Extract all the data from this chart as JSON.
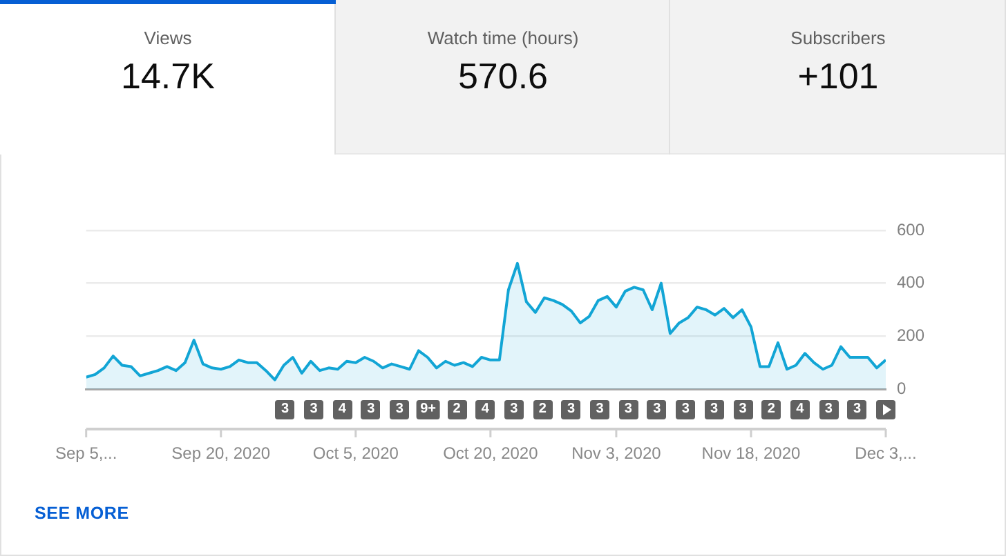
{
  "chart_data": [
    {
      "type": "other",
      "title": "Views",
      "annotations": [
        "14.7K"
      ]
    },
    {
      "type": "other",
      "title": "Watch time (hours)",
      "annotations": [
        "570.6"
      ]
    },
    {
      "type": "other",
      "title": "Subscribers",
      "annotations": [
        "+101"
      ]
    },
    {
      "type": "area",
      "x": [
        "2020-09-05",
        "2020-09-06",
        "2020-09-07",
        "2020-09-08",
        "2020-09-09",
        "2020-09-10",
        "2020-09-11",
        "2020-09-12",
        "2020-09-13",
        "2020-09-14",
        "2020-09-15",
        "2020-09-16",
        "2020-09-17",
        "2020-09-18",
        "2020-09-19",
        "2020-09-20",
        "2020-09-21",
        "2020-09-22",
        "2020-09-23",
        "2020-09-24",
        "2020-09-25",
        "2020-09-26",
        "2020-09-27",
        "2020-09-28",
        "2020-09-29",
        "2020-09-30",
        "2020-10-01",
        "2020-10-02",
        "2020-10-03",
        "2020-10-04",
        "2020-10-05",
        "2020-10-06",
        "2020-10-07",
        "2020-10-08",
        "2020-10-09",
        "2020-10-10",
        "2020-10-11",
        "2020-10-12",
        "2020-10-13",
        "2020-10-14",
        "2020-10-15",
        "2020-10-16",
        "2020-10-17",
        "2020-10-18",
        "2020-10-19",
        "2020-10-20",
        "2020-10-21",
        "2020-10-22",
        "2020-10-23",
        "2020-10-24",
        "2020-10-25",
        "2020-10-26",
        "2020-10-27",
        "2020-10-28",
        "2020-10-29",
        "2020-10-30",
        "2020-10-31",
        "2020-11-01",
        "2020-11-02",
        "2020-11-03",
        "2020-11-04",
        "2020-11-05",
        "2020-11-06",
        "2020-11-07",
        "2020-11-08",
        "2020-11-09",
        "2020-11-10",
        "2020-11-11",
        "2020-11-12",
        "2020-11-13",
        "2020-11-14",
        "2020-11-15",
        "2020-11-16",
        "2020-11-17",
        "2020-11-18",
        "2020-11-19",
        "2020-11-20",
        "2020-11-21",
        "2020-11-22",
        "2020-11-23",
        "2020-11-24",
        "2020-11-25",
        "2020-11-26",
        "2020-11-27",
        "2020-11-28",
        "2020-11-29",
        "2020-11-30",
        "2020-12-01",
        "2020-12-02",
        "2020-12-03"
      ],
      "series": [
        {
          "color": "#12a5d5",
          "values": [
            45,
            55,
            80,
            125,
            90,
            85,
            50,
            60,
            70,
            85,
            70,
            100,
            185,
            95,
            80,
            75,
            85,
            110,
            100,
            100,
            70,
            35,
            90,
            120,
            60,
            105,
            70,
            80,
            75,
            105,
            100,
            120,
            105,
            80,
            95,
            85,
            75,
            145,
            120,
            80,
            105,
            90,
            100,
            85,
            120,
            110,
            110,
            375,
            475,
            330,
            290,
            345,
            335,
            320,
            295,
            250,
            275,
            335,
            350,
            310,
            370,
            385,
            375,
            300,
            400,
            210,
            250,
            270,
            310,
            300,
            280,
            305,
            270,
            300,
            235,
            85,
            85,
            175,
            75,
            90,
            135,
            100,
            75,
            90,
            160,
            120,
            120,
            120,
            80,
            110
          ]
        }
      ],
      "xlim": [
        "2020-09-05",
        "2020-12-03"
      ],
      "xticks": [
        {
          "value": "2020-09-05",
          "label": "Sep 5,..."
        },
        {
          "value": "2020-09-20",
          "label": "Sep 20, 2020"
        },
        {
          "value": "2020-10-05",
          "label": "Oct 5, 2020"
        },
        {
          "value": "2020-10-20",
          "label": "Oct 20, 2020"
        },
        {
          "value": "2020-11-03",
          "label": "Nov 3, 2020"
        },
        {
          "value": "2020-11-18",
          "label": "Nov 18, 2020"
        },
        {
          "value": "2020-12-03",
          "label": "Dec 3,..."
        }
      ],
      "ylim": [
        0,
        600
      ],
      "yticks": [
        0,
        200,
        400,
        600
      ],
      "grid": "y",
      "marker": "none",
      "annotations": [
        "3",
        "3",
        "4",
        "3",
        "3",
        "9+",
        "2",
        "4",
        "3",
        "2",
        "3",
        "3",
        "3",
        "3",
        "3",
        "3",
        "3",
        "2",
        "4",
        "3",
        "3"
      ]
    },
    {
      "type": "other",
      "annotations": [
        "SEE MORE"
      ]
    }
  ]
}
